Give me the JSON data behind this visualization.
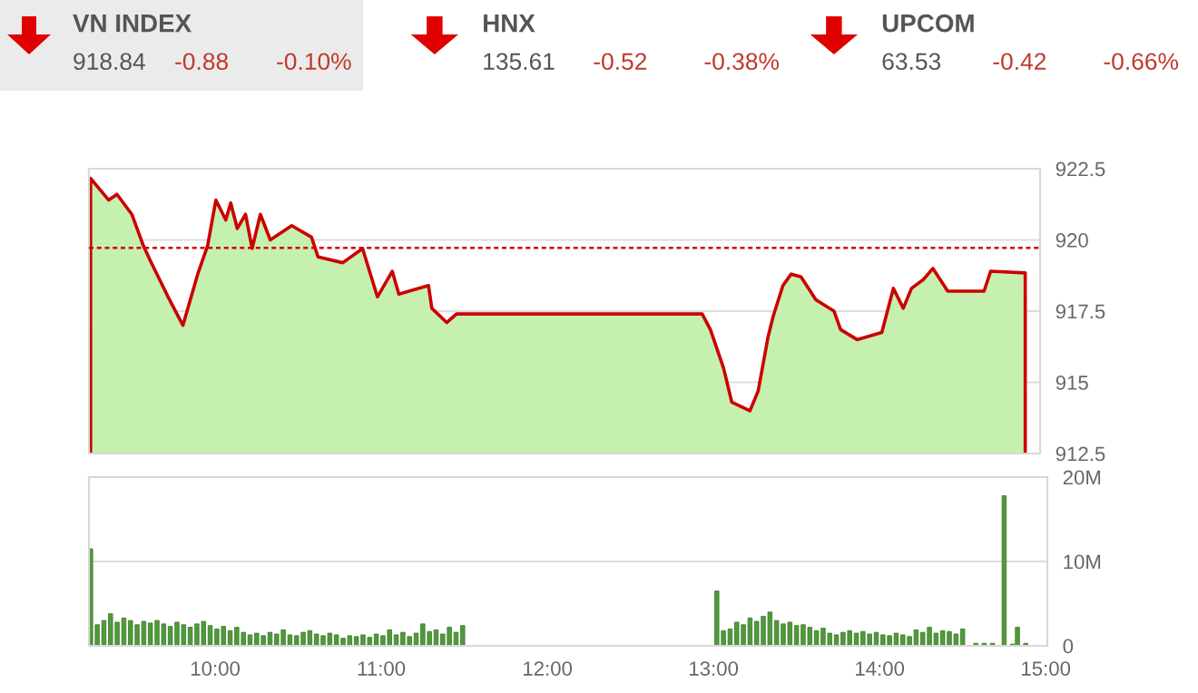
{
  "chart_data": [
    {
      "type": "other",
      "title": "VN INDEX",
      "annotations": [
        "918.84",
        "-0.88",
        "-0.10%"
      ]
    },
    {
      "type": "other",
      "title": "HNX",
      "annotations": [
        "135.61",
        "-0.52",
        "-0.38%"
      ]
    },
    {
      "type": "other",
      "title": "UPCOM",
      "annotations": [
        "63.53",
        "-0.42",
        "-0.66%"
      ]
    },
    {
      "type": "area",
      "x": [
        9.25,
        9.36,
        9.41,
        9.5,
        9.57,
        9.61,
        9.72,
        9.81,
        9.9,
        9.96,
        10.01,
        10.07,
        10.1,
        10.14,
        10.19,
        10.23,
        10.28,
        10.34,
        10.47,
        10.59,
        10.63,
        10.78,
        10.9,
        10.99,
        11.08,
        11.12,
        11.3,
        11.32,
        11.41,
        11.47,
        12.96,
        13.01,
        13.09,
        13.14,
        13.25,
        13.3,
        13.36,
        13.39,
        13.45,
        13.5,
        13.56,
        13.65,
        13.76,
        13.8,
        13.9,
        14.05,
        14.12,
        14.18,
        14.23,
        14.3,
        14.36,
        14.45,
        14.67,
        14.71,
        14.92
      ],
      "series": [
        {
          "color": "#cc0000",
          "values": [
            922.16,
            921.4,
            921.6,
            920.9,
            919.8,
            919.3,
            918.0,
            917.0,
            918.8,
            919.8,
            921.4,
            920.7,
            921.3,
            920.4,
            920.9,
            919.7,
            920.9,
            920.0,
            920.5,
            920.1,
            919.4,
            919.2,
            919.7,
            918.0,
            918.9,
            918.1,
            918.4,
            917.6,
            917.1,
            917.4,
            917.4,
            916.85,
            915.5,
            914.3,
            914.0,
            914.7,
            916.6,
            917.3,
            918.4,
            918.8,
            918.7,
            917.9,
            917.5,
            916.85,
            916.5,
            916.75,
            918.3,
            917.6,
            918.3,
            918.6,
            919.0,
            918.2,
            918.2,
            918.9,
            918.84
          ]
        }
      ],
      "xlim": [
        9.24,
        15.01
      ],
      "ylim": [
        912.5,
        922.5
      ],
      "yticks": [
        912.5,
        915,
        917.5,
        920,
        922.5
      ],
      "grid": "y",
      "tick_labels": "y",
      "ref_lines": [
        {
          "axis": "y",
          "value": 919.72,
          "color": "#cc0000",
          "line_style": "dashed"
        }
      ]
    },
    {
      "type": "bar",
      "x": [
        9.25,
        9.29,
        9.33,
        9.37,
        9.41,
        9.45,
        9.49,
        9.53,
        9.57,
        9.61,
        9.65,
        9.69,
        9.73,
        9.77,
        9.81,
        9.85,
        9.89,
        9.93,
        9.97,
        10.01,
        10.05,
        10.09,
        10.13,
        10.17,
        10.21,
        10.25,
        10.29,
        10.33,
        10.37,
        10.41,
        10.45,
        10.49,
        10.53,
        10.57,
        10.61,
        10.65,
        10.69,
        10.73,
        10.77,
        10.81,
        10.85,
        10.89,
        10.93,
        10.97,
        11.01,
        11.05,
        11.09,
        11.13,
        11.17,
        11.21,
        11.25,
        11.29,
        11.33,
        11.37,
        11.41,
        11.45,
        11.49,
        13.02,
        13.06,
        13.1,
        13.14,
        13.18,
        13.22,
        13.26,
        13.3,
        13.34,
        13.38,
        13.42,
        13.46,
        13.5,
        13.54,
        13.58,
        13.62,
        13.66,
        13.7,
        13.74,
        13.78,
        13.82,
        13.86,
        13.9,
        13.94,
        13.98,
        14.02,
        14.06,
        14.1,
        14.14,
        14.18,
        14.22,
        14.26,
        14.3,
        14.34,
        14.38,
        14.42,
        14.46,
        14.5,
        14.58,
        14.63,
        14.68,
        14.75,
        14.8,
        14.83,
        14.88
      ],
      "values": [
        11.5,
        2.5,
        3.0,
        3.8,
        2.8,
        3.3,
        3.0,
        2.5,
        2.9,
        2.7,
        3.0,
        2.6,
        2.3,
        2.8,
        2.5,
        2.2,
        2.6,
        2.9,
        2.4,
        2.0,
        2.3,
        1.8,
        2.2,
        1.6,
        1.3,
        1.5,
        1.2,
        1.6,
        1.4,
        1.9,
        1.3,
        1.2,
        1.6,
        1.8,
        1.4,
        1.2,
        1.5,
        1.3,
        0.9,
        1.2,
        1.1,
        1.3,
        1.0,
        1.4,
        1.2,
        1.9,
        1.3,
        1.6,
        1.1,
        1.5,
        2.6,
        1.7,
        1.9,
        1.4,
        2.2,
        1.6,
        2.4,
        6.5,
        1.8,
        2.0,
        2.8,
        2.5,
        3.3,
        2.9,
        3.5,
        4.0,
        3.0,
        2.6,
        2.8,
        2.4,
        2.5,
        2.2,
        1.8,
        2.1,
        1.5,
        1.3,
        1.6,
        1.8,
        1.5,
        1.7,
        1.4,
        1.6,
        1.3,
        1.2,
        1.5,
        1.3,
        1.1,
        1.9,
        1.6,
        2.2,
        1.5,
        1.8,
        1.7,
        1.4,
        2.0,
        0.3,
        0.3,
        0.3,
        17.8,
        0.2,
        2.2,
        0.3
      ],
      "color": "#4f9a3a",
      "xlim": [
        9.24,
        15.01
      ],
      "xticks": [
        {
          "value": 10,
          "label": "10:00"
        },
        {
          "value": 11,
          "label": "11:00"
        },
        {
          "value": 12,
          "label": "12:00"
        },
        {
          "value": 13,
          "label": "13:00"
        },
        {
          "value": 14,
          "label": "14:00"
        },
        {
          "value": 15,
          "label": "15:00"
        }
      ],
      "ylim": [
        0,
        20
      ],
      "yticks": [
        0,
        {
          "value": 10,
          "label": "10M"
        },
        {
          "value": 20,
          "label": "20M"
        }
      ],
      "grid": "y"
    }
  ]
}
